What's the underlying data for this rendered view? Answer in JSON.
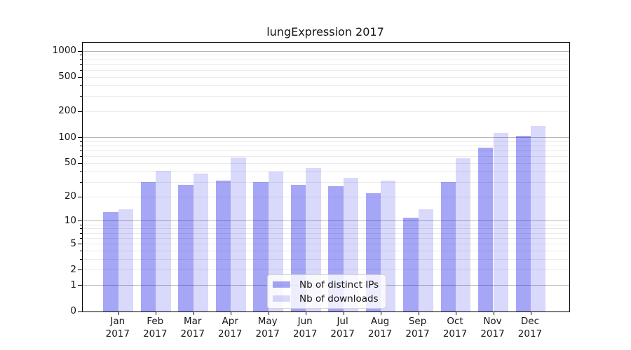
{
  "chart_data": {
    "type": "bar",
    "title": "lungExpression 2017",
    "xlabel": "",
    "ylabel": "",
    "categories": [
      "Jan 2017",
      "Feb 2017",
      "Mar 2017",
      "Apr 2017",
      "May 2017",
      "Jun 2017",
      "Jul 2017",
      "Aug 2017",
      "Sep 2017",
      "Oct 2017",
      "Nov 2017",
      "Dec 2017"
    ],
    "series": [
      {
        "name": "Nb of distinct IPs",
        "color": "rgba(0,0,230,0.35)",
        "values": [
          13,
          30,
          28,
          31,
          30,
          28,
          27,
          22,
          11,
          30,
          76,
          105
        ]
      },
      {
        "name": "Nb of downloads",
        "color": "rgba(0,0,230,0.15)",
        "values": [
          14,
          41,
          38,
          58,
          40,
          44,
          34,
          31,
          14,
          57,
          112,
          136
        ]
      }
    ],
    "yscale": "log1p",
    "ylim": [
      0,
      1250
    ],
    "yticks": [
      0,
      1,
      2,
      5,
      10,
      20,
      50,
      100,
      200,
      500,
      1000
    ],
    "major_grid_values": [
      1,
      10,
      100,
      1000
    ],
    "minor_grid_values": [
      3,
      4,
      6,
      7,
      8,
      9,
      30,
      40,
      60,
      70,
      80,
      90,
      300,
      400,
      600,
      700,
      800,
      900
    ],
    "grid": true,
    "legend_position": "lower-center-inside",
    "colors": {
      "background": "#ffffff",
      "spine": "#000000",
      "major_grid": "#b6b6b6",
      "minor_grid": "#eaeaea",
      "text": "#151515"
    }
  },
  "legend": {
    "items": [
      {
        "label": "Nb of distinct IPs"
      },
      {
        "label": "Nb of downloads"
      }
    ]
  }
}
